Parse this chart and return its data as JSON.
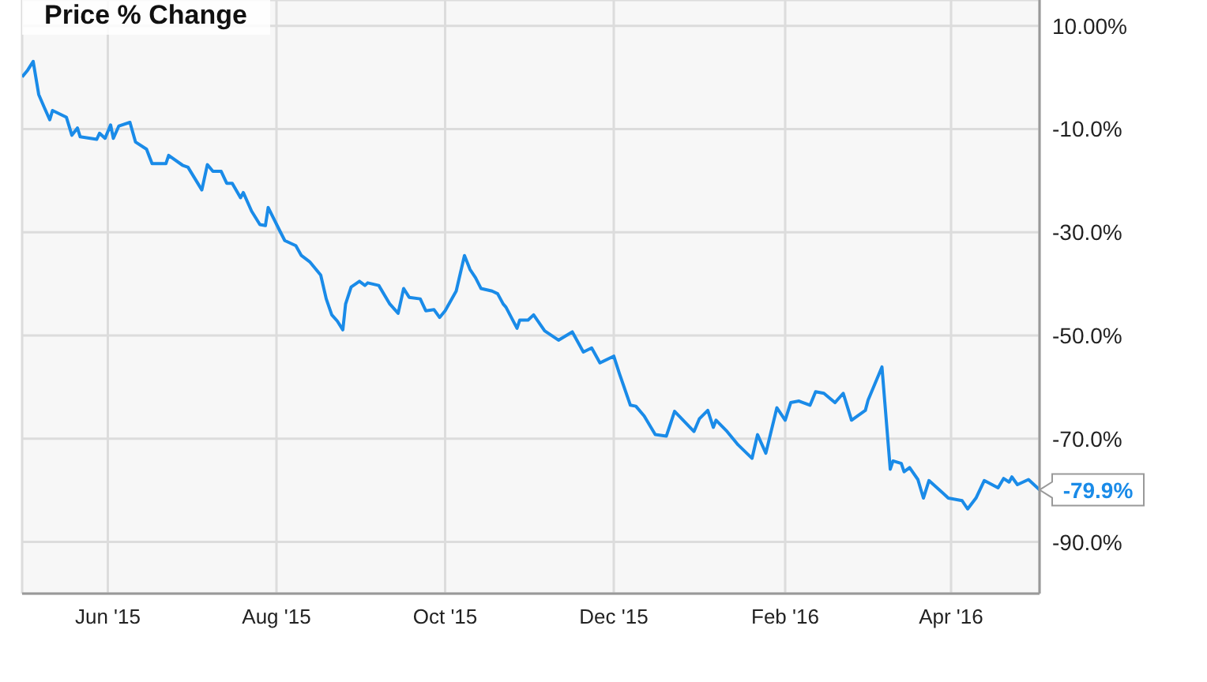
{
  "chart_data": {
    "type": "line",
    "title": "Price % Change",
    "x": [
      "2015-05-01",
      "2015-05-03",
      "2015-05-05",
      "2015-05-07",
      "2015-05-09",
      "2015-05-11",
      "2015-05-12",
      "2015-05-17",
      "2015-05-19",
      "2015-05-21",
      "2015-05-22",
      "2015-05-28",
      "2015-05-29",
      "2015-05-31",
      "2015-06-02",
      "2015-06-03",
      "2015-06-05",
      "2015-06-09",
      "2015-06-11",
      "2015-06-15",
      "2015-06-17",
      "2015-06-22",
      "2015-06-23",
      "2015-06-28",
      "2015-06-30",
      "2015-07-05",
      "2015-07-07",
      "2015-07-09",
      "2015-07-12",
      "2015-07-14",
      "2015-07-16",
      "2015-07-19",
      "2015-07-20",
      "2015-07-23",
      "2015-07-26",
      "2015-07-28",
      "2015-07-29",
      "2015-08-02",
      "2015-08-04",
      "2015-08-08",
      "2015-08-10",
      "2015-08-13",
      "2015-08-17",
      "2015-08-19",
      "2015-08-21",
      "2015-08-23",
      "2015-08-25",
      "2015-08-26",
      "2015-08-28",
      "2015-08-31",
      "2015-09-02",
      "2015-09-03",
      "2015-09-07",
      "2015-09-11",
      "2015-09-14",
      "2015-09-16",
      "2015-09-18",
      "2015-09-22",
      "2015-09-24",
      "2015-09-27",
      "2015-09-29",
      "2015-10-01",
      "2015-10-05",
      "2015-10-08",
      "2015-10-10",
      "2015-10-12",
      "2015-10-14",
      "2015-10-18",
      "2015-10-20",
      "2015-10-22",
      "2015-10-23",
      "2015-10-27",
      "2015-10-28",
      "2015-10-31",
      "2015-11-02",
      "2015-11-06",
      "2015-11-11",
      "2015-11-16",
      "2015-11-20",
      "2015-11-23",
      "2015-11-26",
      "2015-12-01",
      "2015-12-03",
      "2015-12-07",
      "2015-12-09",
      "2015-12-12",
      "2015-12-16",
      "2015-12-20",
      "2015-12-23",
      "2015-12-30",
      "2016-01-01",
      "2016-01-04",
      "2016-01-06",
      "2016-01-07",
      "2016-01-11",
      "2016-01-15",
      "2016-01-20",
      "2016-01-22",
      "2016-01-25",
      "2016-01-29",
      "2016-02-01",
      "2016-02-03",
      "2016-02-06",
      "2016-02-10",
      "2016-02-12",
      "2016-02-15",
      "2016-02-19",
      "2016-02-22",
      "2016-02-25",
      "2016-03-01",
      "2016-03-02",
      "2016-03-07",
      "2016-03-10",
      "2016-03-11",
      "2016-03-14",
      "2016-03-15",
      "2016-03-17",
      "2016-03-20",
      "2016-03-22",
      "2016-03-24",
      "2016-03-29",
      "2016-03-31",
      "2016-04-05",
      "2016-04-07",
      "2016-04-10",
      "2016-04-13",
      "2016-04-18",
      "2016-04-20",
      "2016-04-22",
      "2016-04-23",
      "2016-04-25",
      "2016-04-29",
      "2016-05-03"
    ],
    "series": [
      {
        "color": "#1a8be8",
        "values": [
          0.1,
          1.4,
          3.1,
          -3.3,
          -5.8,
          -8.2,
          -6.4,
          -7.7,
          -11.2,
          -9.8,
          -11.5,
          -12.0,
          -10.8,
          -11.8,
          -9.2,
          -11.8,
          -9.4,
          -8.7,
          -12.5,
          -13.9,
          -16.7,
          -16.7,
          -15.1,
          -17.0,
          -17.4,
          -21.8,
          -16.9,
          -18.2,
          -18.2,
          -20.5,
          -20.5,
          -23.3,
          -22.3,
          -25.9,
          -28.5,
          -28.7,
          -25.2,
          -29.5,
          -31.6,
          -32.6,
          -34.5,
          -35.7,
          -38.3,
          -42.9,
          -46.0,
          -47.2,
          -48.9,
          -43.9,
          -40.6,
          -39.5,
          -40.3,
          -39.8,
          -40.3,
          -43.9,
          -45.7,
          -40.9,
          -42.6,
          -42.9,
          -45.2,
          -45.0,
          -46.5,
          -45.2,
          -41.4,
          -34.5,
          -37.2,
          -38.8,
          -40.9,
          -41.4,
          -41.9,
          -43.9,
          -44.5,
          -48.6,
          -47.0,
          -47.0,
          -46.0,
          -49.1,
          -50.9,
          -49.3,
          -53.2,
          -52.4,
          -55.3,
          -54.0,
          -57.3,
          -63.5,
          -63.7,
          -65.6,
          -69.2,
          -69.5,
          -64.7,
          -68.6,
          -66.1,
          -64.5,
          -67.8,
          -66.4,
          -68.6,
          -71.2,
          -73.8,
          -69.2,
          -72.8,
          -64.0,
          -66.4,
          -63.0,
          -62.7,
          -63.5,
          -60.9,
          -61.2,
          -63.0,
          -61.2,
          -66.4,
          -64.5,
          -62.5,
          -56.1,
          -75.9,
          -74.3,
          -74.8,
          -76.4,
          -75.6,
          -77.9,
          -81.5,
          -78.1,
          -80.5,
          -81.5,
          -82.0,
          -83.6,
          -81.5,
          -78.1,
          -79.5,
          -77.7,
          -78.4,
          -77.4,
          -78.9,
          -77.9,
          -79.9
        ]
      }
    ],
    "xlim": [
      "2015-05-01",
      "2016-05-03"
    ],
    "xticks": [
      {
        "value": "2015-06-01",
        "label": "Jun '15"
      },
      {
        "value": "2015-08-01",
        "label": "Aug '15"
      },
      {
        "value": "2015-10-01",
        "label": "Oct '15"
      },
      {
        "value": "2015-12-01",
        "label": "Dec '15"
      },
      {
        "value": "2016-02-01",
        "label": "Feb '16"
      },
      {
        "value": "2016-04-01",
        "label": "Apr '16"
      }
    ],
    "ylim": [
      -100,
      15
    ],
    "yticks": [
      {
        "value": 10,
        "label": "10.00%"
      },
      {
        "value": -10,
        "label": "-10.0%"
      },
      {
        "value": -30,
        "label": "-30.0%"
      },
      {
        "value": -50,
        "label": "-50.0%"
      },
      {
        "value": -70,
        "label": "-70.0%"
      },
      {
        "value": -90,
        "label": "-90.0%"
      }
    ],
    "grid": true,
    "legend": false,
    "marker": "none",
    "line_style": "solid",
    "annotations": [
      {
        "text": "-79.9%",
        "x": "2016-05-03",
        "y": -79.9
      }
    ]
  }
}
